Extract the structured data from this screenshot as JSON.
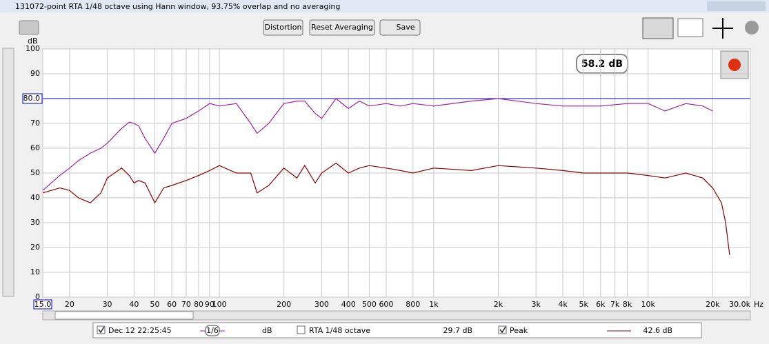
{
  "window": {
    "title": "131072-point RTA 1/48 octave using Hann window, 93.75% overlap and no averaging"
  },
  "toolbar": {
    "buttons": [
      "Distortion",
      "Reset Averaging",
      "Save"
    ]
  },
  "chart_data": {
    "type": "line",
    "y_unit": "dB",
    "x_unit": "Hz",
    "log_x": true,
    "grid": true,
    "cursor_readout": "58.2 dB",
    "xlim": [
      15,
      30000
    ],
    "ylim": [
      0,
      100
    ],
    "xticks": [
      {
        "value": 15,
        "label": "15.0"
      },
      20,
      30,
      40,
      50,
      60,
      70,
      80,
      90,
      100,
      200,
      300,
      400,
      500,
      600,
      800,
      {
        "value": 1000,
        "label": "1k"
      },
      {
        "value": 2000,
        "label": "2k"
      },
      {
        "value": 3000,
        "label": "3k"
      },
      {
        "value": 4000,
        "label": "4k"
      },
      {
        "value": 5000,
        "label": "5k"
      },
      {
        "value": 6000,
        "label": "6k"
      },
      {
        "value": 7000,
        "label": "7k"
      },
      {
        "value": 8000,
        "label": "8k"
      },
      {
        "value": 10000,
        "label": "10k"
      },
      {
        "value": 20000,
        "label": "20k"
      },
      {
        "value": 30000,
        "label": "30.0k"
      }
    ],
    "yticks": [
      0,
      10,
      20,
      30,
      40,
      50,
      60,
      70,
      90,
      100
    ],
    "reference_line": {
      "value": 80,
      "label": "80.0",
      "color": "#0000cc"
    },
    "x": [
      15,
      18,
      20,
      22,
      25,
      28,
      30,
      35,
      38,
      40,
      42,
      45,
      50,
      55,
      60,
      70,
      80,
      90,
      100,
      120,
      140,
      150,
      170,
      200,
      230,
      250,
      280,
      300,
      350,
      400,
      450,
      500,
      600,
      700,
      800,
      1000,
      1500,
      2000,
      3000,
      4000,
      5000,
      6000,
      8000,
      10000,
      12000,
      15000,
      18000,
      20000,
      22000,
      23000,
      24000
    ],
    "series": [
      {
        "name": "Dec 12 22:25:45",
        "smoothing": "1/6",
        "unit": "dB",
        "color": "#a020a0",
        "values": [
          43,
          49,
          52,
          55,
          58,
          60,
          62,
          68,
          70.5,
          70,
          69,
          64,
          58,
          64,
          70,
          72,
          75,
          78,
          77,
          78,
          70,
          66,
          70,
          78,
          79,
          79,
          74,
          72,
          80,
          76,
          79,
          77,
          78,
          77,
          78,
          77,
          79,
          80,
          78,
          77,
          77,
          77,
          78,
          78,
          75,
          78,
          77,
          75,
          null,
          null,
          null
        ]
      },
      {
        "name": "Peak",
        "reading": "42.6 dB",
        "color": "#8b0000",
        "values": [
          42,
          44,
          43,
          40,
          38,
          42,
          48,
          52,
          49,
          46,
          47,
          46,
          38,
          44,
          45,
          47,
          49,
          51,
          53,
          50,
          50,
          42,
          45,
          52,
          48,
          53,
          46,
          50,
          54,
          50,
          52,
          53,
          52,
          51,
          50,
          52,
          51,
          53,
          52,
          51,
          50,
          50,
          50,
          49,
          48,
          50,
          48,
          44,
          38,
          30,
          17
        ]
      }
    ],
    "rta_label": "RTA 1/48 octave",
    "rta_reading": "29.7 dB"
  }
}
